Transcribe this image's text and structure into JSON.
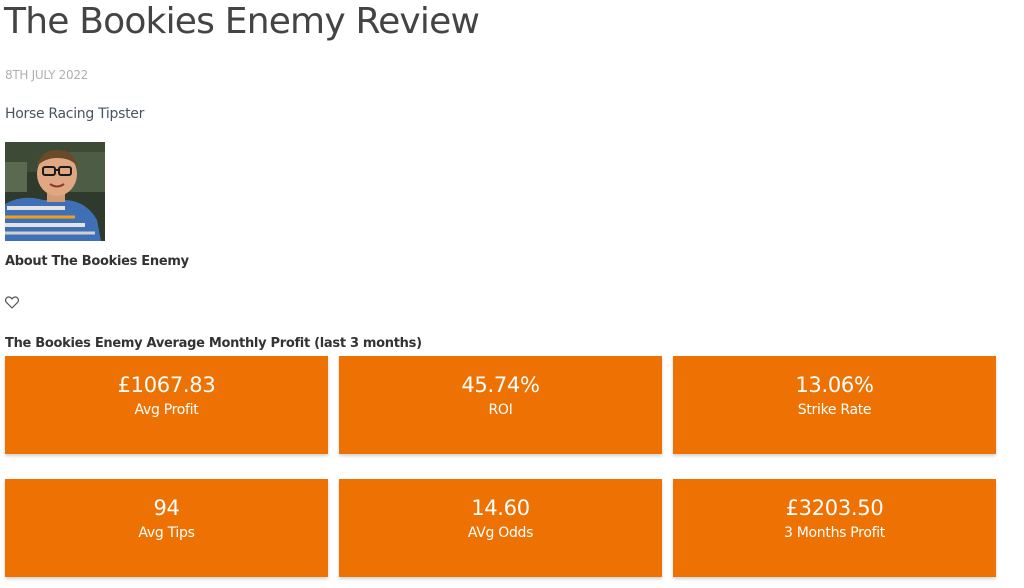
{
  "review": {
    "title": "The Bookies Enemy Review",
    "date": "8TH JULY 2022",
    "category": "Horse Racing Tipster",
    "about_label": "About The Bookies Enemy",
    "favorite_icon": "heart-outline-icon"
  },
  "stats": {
    "heading": "The Bookies Enemy Average Monthly Profit (last 3 months)",
    "accent_color": "#ee7203",
    "items": [
      {
        "value": "£1067.83",
        "label": "Avg Profit"
      },
      {
        "value": "45.74%",
        "label": "ROI"
      },
      {
        "value": "13.06%",
        "label": "Strike Rate"
      },
      {
        "value": "94",
        "label": "Avg Tips"
      },
      {
        "value": "14.60",
        "label": "AVg Odds"
      },
      {
        "value": "£3203.50",
        "label": "3 Months Profit"
      }
    ]
  }
}
